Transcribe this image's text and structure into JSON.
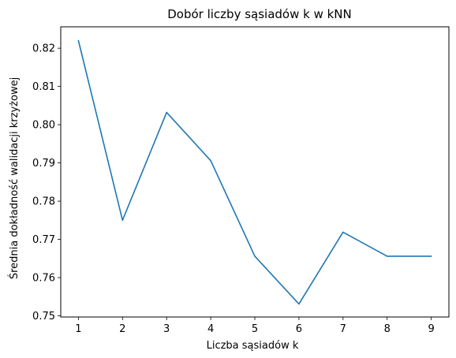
{
  "chart_data": {
    "type": "line",
    "title": "Dobór liczby sąsiadów k w kNN",
    "xlabel": "Liczba sąsiadów k",
    "ylabel": "Średnia dokładność walidacji krzyżowej",
    "x": [
      1,
      2,
      3,
      4,
      5,
      6,
      7,
      8,
      9
    ],
    "series": [
      {
        "values": [
          0.822,
          0.775,
          0.8032,
          0.7906,
          0.7656,
          0.7531,
          0.7719,
          0.7656,
          0.7656
        ]
      }
    ],
    "xticks": [
      "1",
      "2",
      "3",
      "4",
      "5",
      "6",
      "7",
      "8",
      "9"
    ],
    "yticks": [
      "0.75",
      "0.76",
      "0.77",
      "0.78",
      "0.79",
      "0.80",
      "0.81",
      "0.82"
    ],
    "xlim": [
      0.6,
      9.4
    ],
    "ylim": [
      0.7497,
      0.8256
    ],
    "grid": false,
    "line_color": "#1f77b4"
  }
}
